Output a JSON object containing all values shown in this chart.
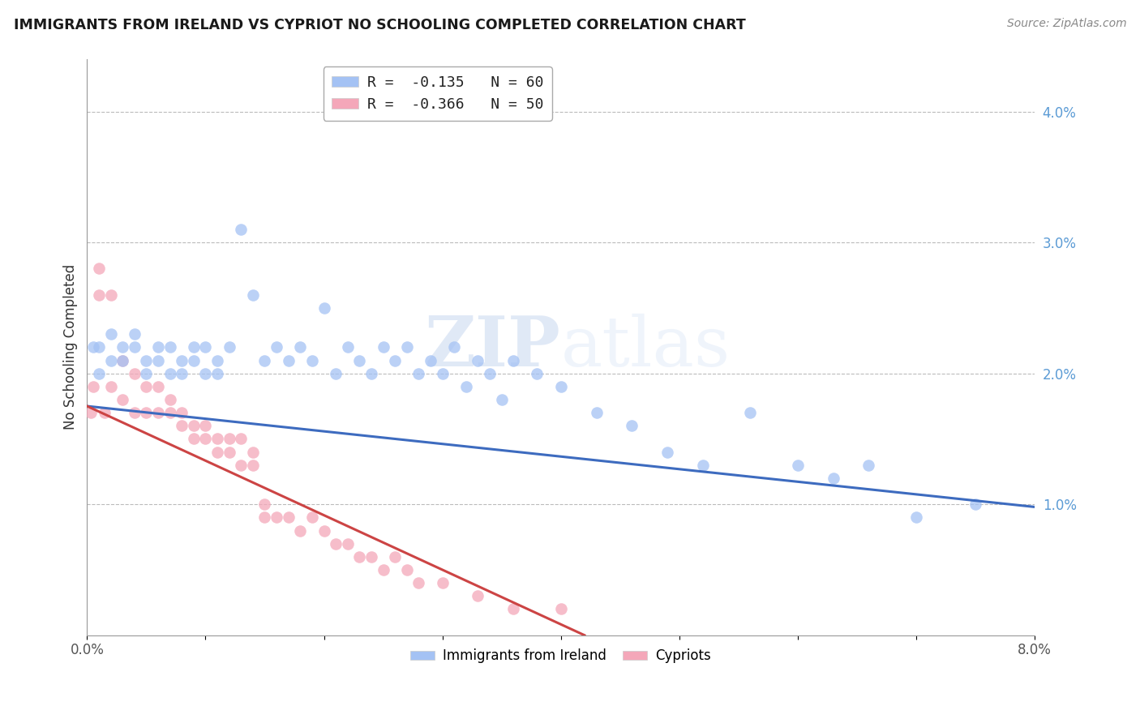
{
  "title": "IMMIGRANTS FROM IRELAND VS CYPRIOT NO SCHOOLING COMPLETED CORRELATION CHART",
  "source": "Source: ZipAtlas.com",
  "ylabel": "No Schooling Completed",
  "right_yticks": [
    "4.0%",
    "3.0%",
    "2.0%",
    "1.0%"
  ],
  "right_ytick_vals": [
    0.04,
    0.03,
    0.02,
    0.01
  ],
  "xlim": [
    0.0,
    0.08
  ],
  "ylim": [
    0.0,
    0.044
  ],
  "legend_line1": "R =  -0.135   N = 60",
  "legend_line2": "R =  -0.366   N = 50",
  "legend_color1": "#a4c2f4",
  "legend_color2": "#f4a7b9",
  "trendline_color1": "#3d6bbf",
  "trendline_color2": "#cc4444",
  "scatter_color1": "#a4c2f4",
  "scatter_color2": "#f4a7b9",
  "watermark_zip": "ZIP",
  "watermark_atlas": "atlas",
  "blue_scatter_x": [
    0.0005,
    0.001,
    0.001,
    0.002,
    0.002,
    0.003,
    0.003,
    0.004,
    0.004,
    0.005,
    0.005,
    0.006,
    0.006,
    0.007,
    0.007,
    0.008,
    0.008,
    0.009,
    0.009,
    0.01,
    0.01,
    0.011,
    0.011,
    0.012,
    0.013,
    0.014,
    0.015,
    0.016,
    0.017,
    0.018,
    0.019,
    0.02,
    0.021,
    0.022,
    0.023,
    0.024,
    0.025,
    0.026,
    0.027,
    0.028,
    0.029,
    0.03,
    0.031,
    0.032,
    0.033,
    0.034,
    0.035,
    0.036,
    0.038,
    0.04,
    0.043,
    0.046,
    0.049,
    0.052,
    0.056,
    0.06,
    0.063,
    0.066,
    0.07,
    0.075
  ],
  "blue_scatter_y": [
    0.022,
    0.02,
    0.022,
    0.021,
    0.023,
    0.022,
    0.021,
    0.023,
    0.022,
    0.02,
    0.021,
    0.022,
    0.021,
    0.02,
    0.022,
    0.021,
    0.02,
    0.022,
    0.021,
    0.02,
    0.022,
    0.021,
    0.02,
    0.022,
    0.031,
    0.026,
    0.021,
    0.022,
    0.021,
    0.022,
    0.021,
    0.025,
    0.02,
    0.022,
    0.021,
    0.02,
    0.022,
    0.021,
    0.022,
    0.02,
    0.021,
    0.02,
    0.022,
    0.019,
    0.021,
    0.02,
    0.018,
    0.021,
    0.02,
    0.019,
    0.017,
    0.016,
    0.014,
    0.013,
    0.017,
    0.013,
    0.012,
    0.013,
    0.009,
    0.01
  ],
  "pink_scatter_x": [
    0.0003,
    0.0005,
    0.001,
    0.001,
    0.0015,
    0.002,
    0.002,
    0.003,
    0.003,
    0.004,
    0.004,
    0.005,
    0.005,
    0.006,
    0.006,
    0.007,
    0.007,
    0.008,
    0.008,
    0.009,
    0.009,
    0.01,
    0.01,
    0.011,
    0.011,
    0.012,
    0.012,
    0.013,
    0.013,
    0.014,
    0.014,
    0.015,
    0.015,
    0.016,
    0.017,
    0.018,
    0.019,
    0.02,
    0.021,
    0.022,
    0.023,
    0.024,
    0.025,
    0.026,
    0.027,
    0.028,
    0.03,
    0.033,
    0.036,
    0.04
  ],
  "pink_scatter_y": [
    0.017,
    0.019,
    0.026,
    0.028,
    0.017,
    0.026,
    0.019,
    0.018,
    0.021,
    0.017,
    0.02,
    0.019,
    0.017,
    0.017,
    0.019,
    0.017,
    0.018,
    0.017,
    0.016,
    0.015,
    0.016,
    0.015,
    0.016,
    0.015,
    0.014,
    0.015,
    0.014,
    0.015,
    0.013,
    0.014,
    0.013,
    0.009,
    0.01,
    0.009,
    0.009,
    0.008,
    0.009,
    0.008,
    0.007,
    0.007,
    0.006,
    0.006,
    0.005,
    0.006,
    0.005,
    0.004,
    0.004,
    0.003,
    0.002,
    0.002
  ],
  "blue_trend_x0": 0.0,
  "blue_trend_x1": 0.08,
  "blue_trend_y0": 0.0175,
  "blue_trend_y1": 0.0098,
  "pink_trend_x0": 0.0,
  "pink_trend_x1": 0.042,
  "pink_trend_y0": 0.0175,
  "pink_trend_y1": 0.0
}
